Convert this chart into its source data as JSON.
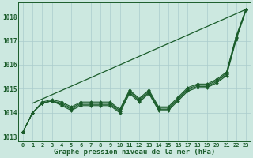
{
  "title": "Graphe pression niveau de la mer (hPa)",
  "background_color": "#cce8e0",
  "grid_color": "#aacccc",
  "line_color": "#1a5c2a",
  "xlim": [
    -0.5,
    23.5
  ],
  "ylim": [
    1012.8,
    1018.6
  ],
  "yticks": [
    1013,
    1014,
    1015,
    1016,
    1017,
    1018
  ],
  "xticks": [
    0,
    1,
    2,
    3,
    4,
    5,
    6,
    7,
    8,
    9,
    10,
    11,
    12,
    13,
    14,
    15,
    16,
    17,
    18,
    19,
    20,
    21,
    22,
    23
  ],
  "upper_line_x": [
    1,
    23
  ],
  "upper_line_y": [
    1014.4,
    1018.3
  ],
  "series_with_markers": [
    [
      1013.2,
      1014.0,
      1014.4,
      1014.5,
      1014.3,
      1014.1,
      1014.3,
      1014.3,
      1014.3,
      1014.3,
      1014.0,
      1014.8,
      1014.45,
      1014.8,
      1014.1,
      1014.1,
      1014.5,
      1014.9,
      1015.05,
      1015.05,
      1015.25,
      1015.55,
      1017.05,
      1018.25
    ],
    [
      1013.2,
      1014.0,
      1014.4,
      1014.5,
      1014.35,
      1014.15,
      1014.35,
      1014.35,
      1014.35,
      1014.35,
      1014.05,
      1014.85,
      1014.5,
      1014.85,
      1014.15,
      1014.15,
      1014.55,
      1014.95,
      1015.1,
      1015.1,
      1015.3,
      1015.6,
      1017.1,
      1018.3
    ],
    [
      1013.2,
      1014.0,
      1014.4,
      1014.5,
      1014.4,
      1014.2,
      1014.4,
      1014.4,
      1014.4,
      1014.4,
      1014.1,
      1014.9,
      1014.55,
      1014.9,
      1014.2,
      1014.2,
      1014.6,
      1015.0,
      1015.15,
      1015.15,
      1015.35,
      1015.65,
      1017.15,
      1018.3
    ],
    [
      1013.2,
      1014.0,
      1014.45,
      1014.55,
      1014.45,
      1014.25,
      1014.45,
      1014.45,
      1014.45,
      1014.45,
      1014.15,
      1014.95,
      1014.6,
      1014.95,
      1014.25,
      1014.25,
      1014.65,
      1015.05,
      1015.2,
      1015.2,
      1015.4,
      1015.7,
      1017.2,
      1018.3
    ]
  ],
  "flat_line": [
    1014.0,
    1014.0,
    1014.0,
    1014.0,
    1014.0,
    1014.0,
    1014.0,
    1014.0,
    1014.0,
    1014.0,
    1014.0,
    1014.0,
    1014.0,
    1014.0,
    1014.0,
    1014.0,
    1014.0,
    1014.0,
    1014.0,
    1014.0,
    1014.0,
    1014.0,
    1014.0,
    1014.0
  ]
}
